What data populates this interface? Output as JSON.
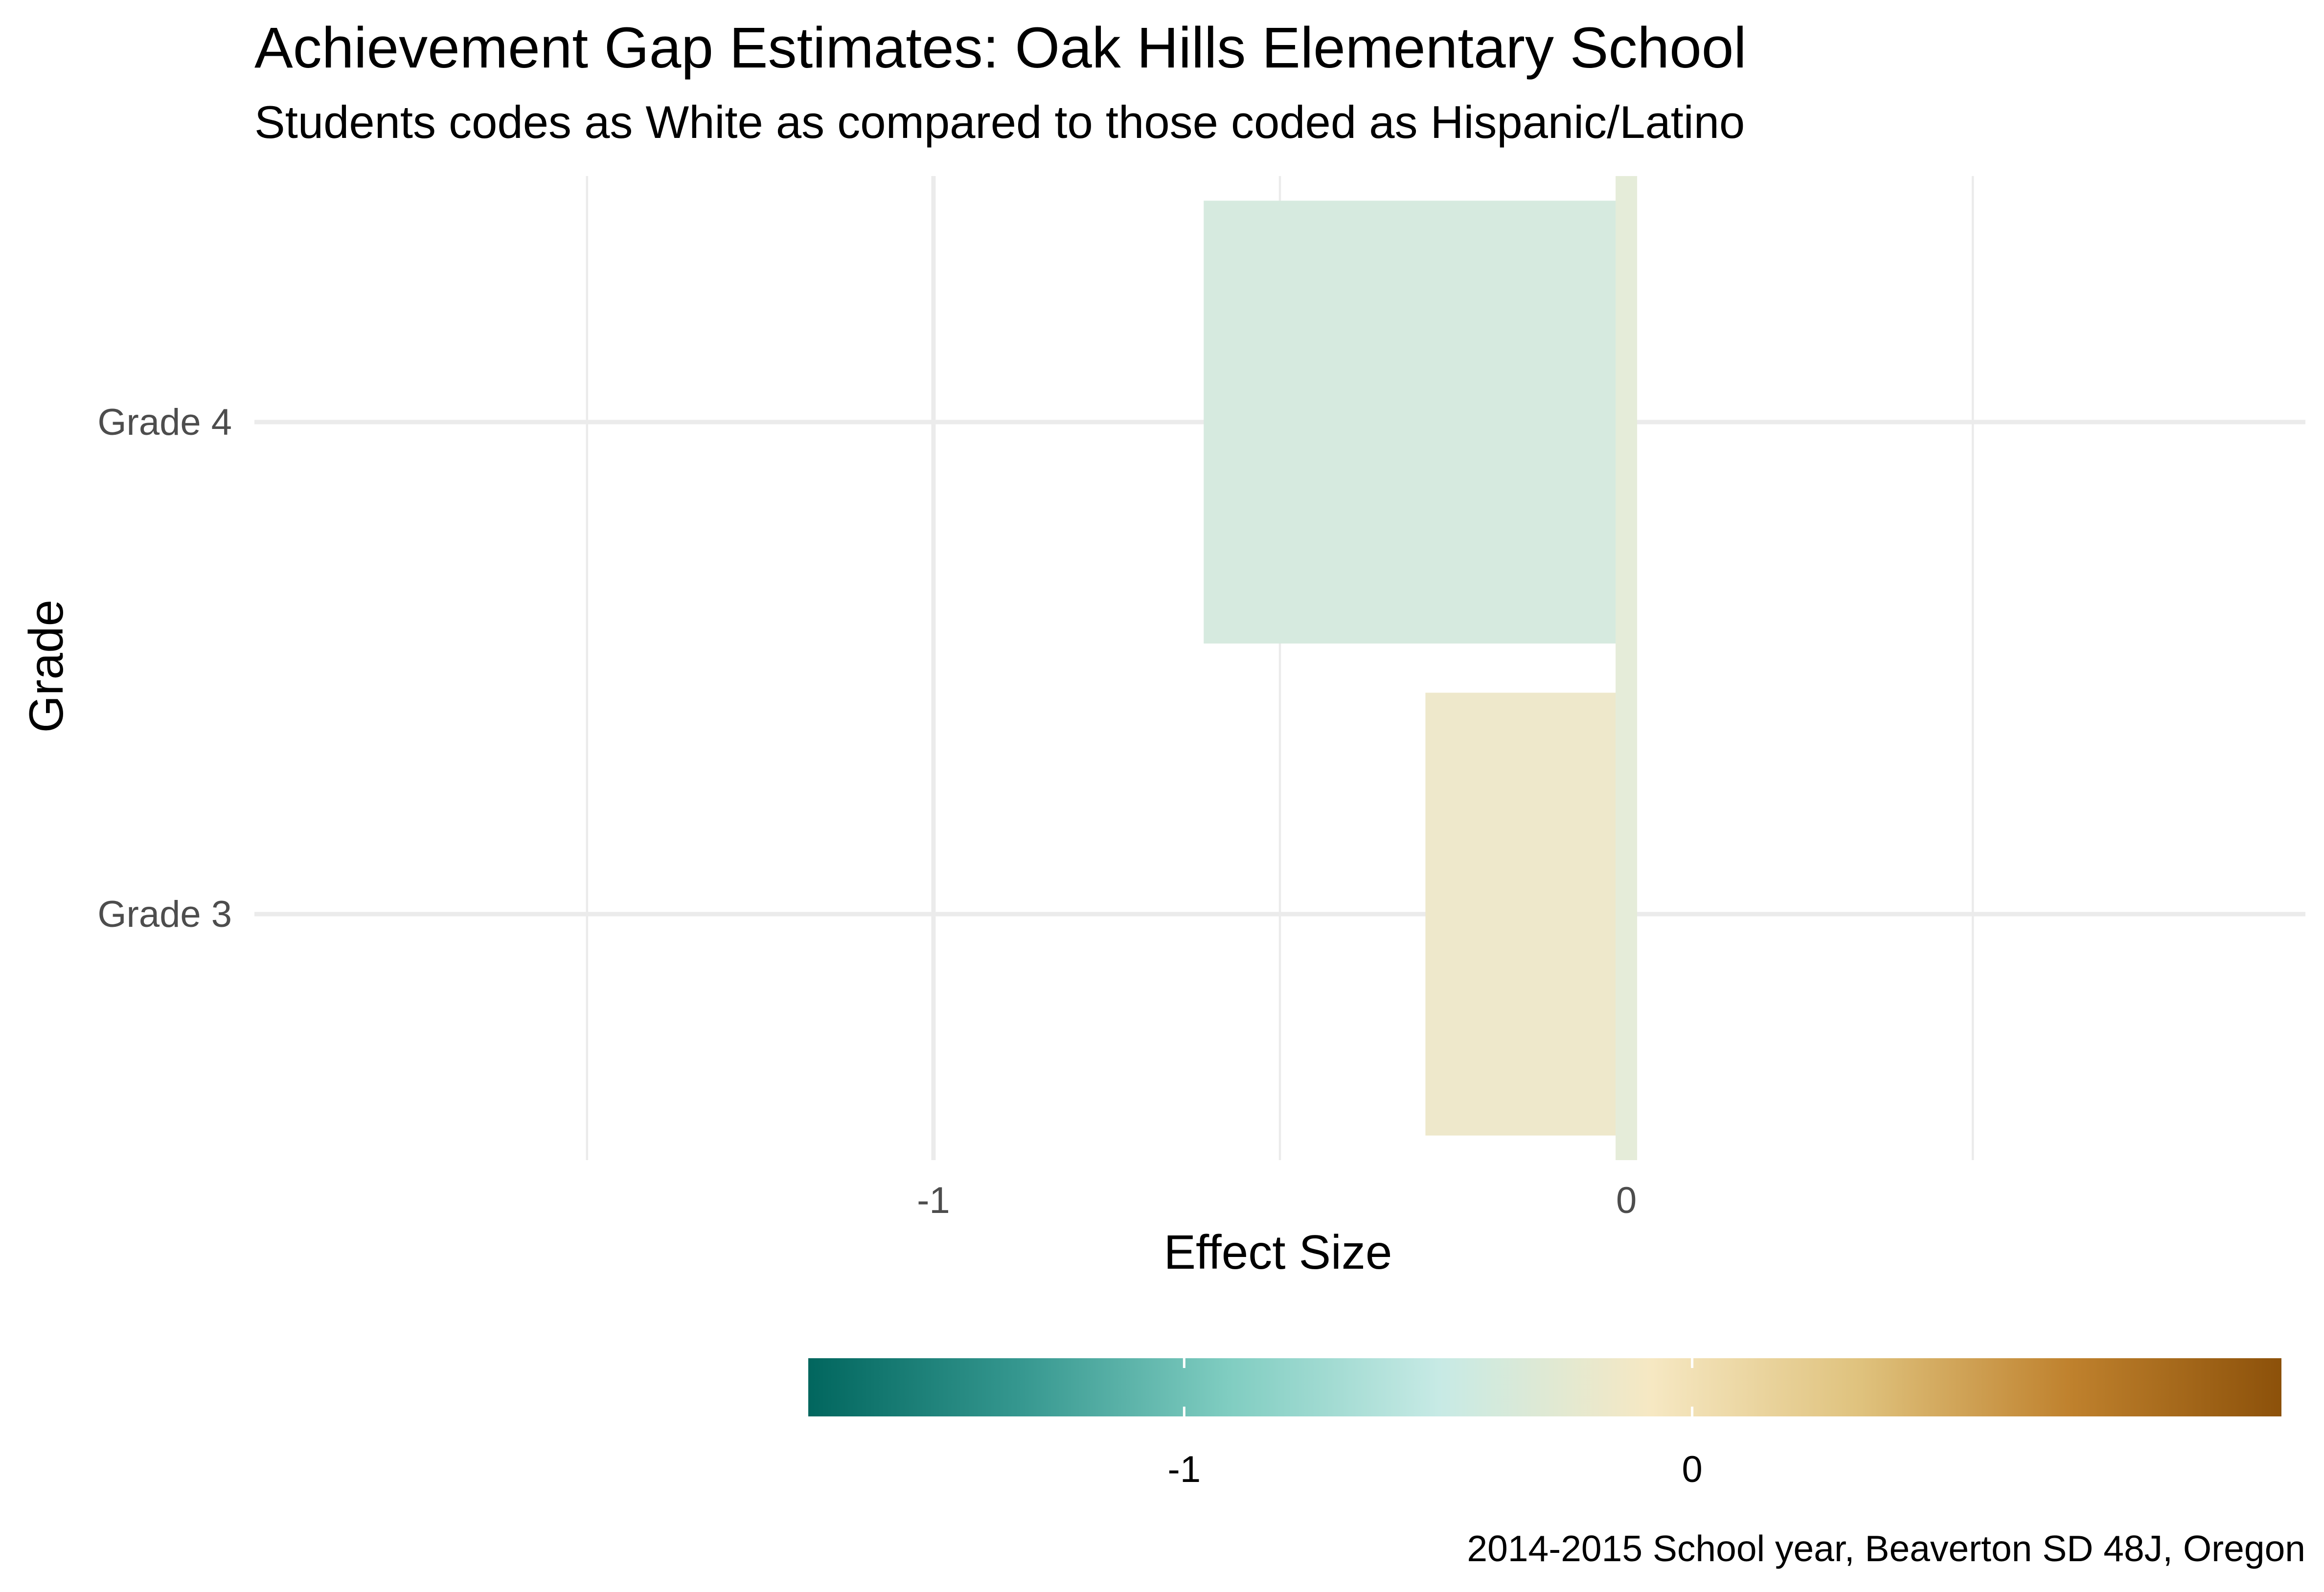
{
  "chart_data": {
    "type": "bar",
    "orientation": "horizontal",
    "title": "Achievement Gap Estimates: Oak Hills Elementary School",
    "subtitle": "Students codes as White as compared to those coded as Hispanic/Latino",
    "caption": "2014-2015 School year, Beaverton SD 48J, Oregon",
    "xlabel": "Effect Size",
    "ylabel": "Grade",
    "categories": [
      "Grade 3",
      "Grade 4"
    ],
    "values": [
      -0.29,
      -0.61
    ],
    "xlim": [
      -1.98,
      0.98
    ],
    "x_ticks": [
      -1,
      0
    ],
    "x_tick_labels": [
      "-1",
      "0"
    ],
    "reference_line": {
      "x": 0,
      "color": "#e5ecd9"
    },
    "bar_colors": [
      "#eee8cb",
      "#d6eadf"
    ],
    "grid": true,
    "legend": {
      "position": "bottom",
      "type": "colorbar",
      "range": [
        -1.74,
        1.16
      ],
      "ticks": [
        -1,
        0
      ],
      "tick_labels": [
        "-1",
        "0"
      ],
      "colors": [
        "#01665e",
        "#35978f",
        "#80cdc1",
        "#c7eae5",
        "#f6e8c3",
        "#dfc27d",
        "#bf812d",
        "#8c510a"
      ]
    }
  }
}
